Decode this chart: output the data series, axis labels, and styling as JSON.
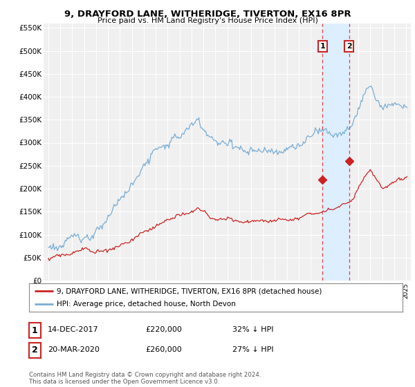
{
  "title": "9, DRAYFORD LANE, WITHERIDGE, TIVERTON, EX16 8PR",
  "subtitle": "Price paid vs. HM Land Registry's House Price Index (HPI)",
  "ylabel_ticks": [
    "£0",
    "£50K",
    "£100K",
    "£150K",
    "£200K",
    "£250K",
    "£300K",
    "£350K",
    "£400K",
    "£450K",
    "£500K",
    "£550K"
  ],
  "ytick_values": [
    0,
    50000,
    100000,
    150000,
    200000,
    250000,
    300000,
    350000,
    400000,
    450000,
    500000,
    550000
  ],
  "hpi_color": "#7aadd4",
  "price_color": "#cc2222",
  "vline_color": "#dd4444",
  "shade_color": "#ddeeff",
  "legend_entry1": "9, DRAYFORD LANE, WITHERIDGE, TIVERTON, EX16 8PR (detached house)",
  "legend_entry2": "HPI: Average price, detached house, North Devon",
  "purchase1_date": 2018.0,
  "purchase1_price": 220000,
  "purchase2_date": 2020.22,
  "purchase2_price": 260000,
  "table_row1": [
    "1",
    "14-DEC-2017",
    "£220,000",
    "32% ↓ HPI"
  ],
  "table_row2": [
    "2",
    "20-MAR-2020",
    "£260,000",
    "27% ↓ HPI"
  ],
  "footnote": "Contains HM Land Registry data © Crown copyright and database right 2024.\nThis data is licensed under the Open Government Licence v3.0.",
  "xmin": 1994.6,
  "xmax": 2025.4,
  "ymin": 0,
  "ymax": 560000,
  "background_color": "#ffffff",
  "plot_bg_color": "#f0f0f0"
}
